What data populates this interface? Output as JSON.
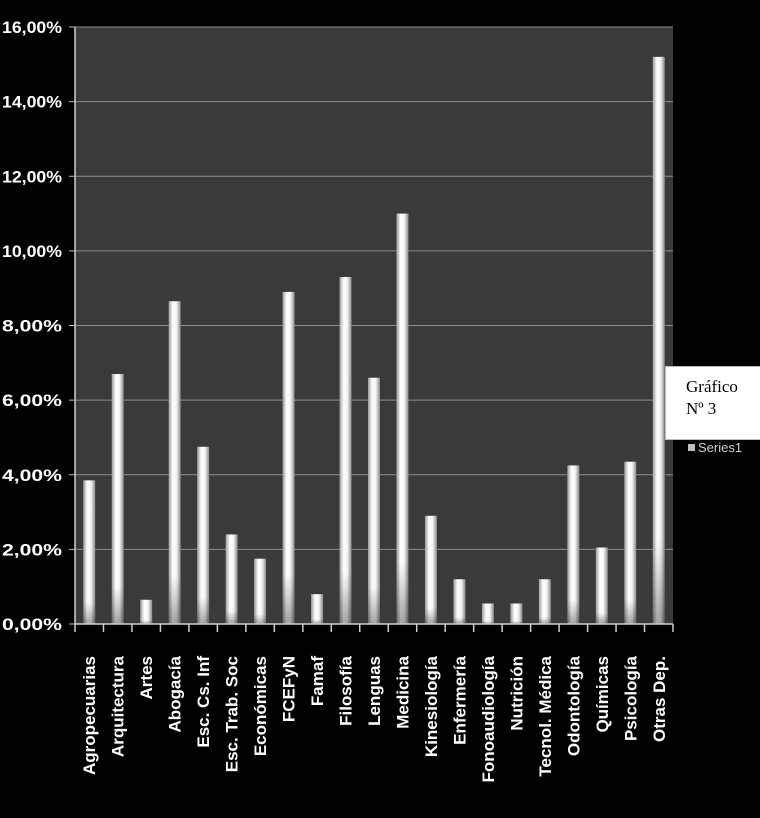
{
  "chart_data": {
    "type": "bar",
    "categories": [
      "Agropecuarias",
      "Arquitectura",
      "Artes",
      "Abogacía",
      "Esc. Cs. Inf",
      "Esc. Trab. Soc",
      "Económicas",
      "FCEFyN",
      "Famaf",
      "Filosofía",
      "Lenguas",
      "Medicina",
      "Kinesiología",
      "Enfermería",
      "Fonoaudiología",
      "Nutrición",
      "Tecnol. Médica",
      "Odontología",
      "Químicas",
      "Psicología",
      "Otras Dep."
    ],
    "series": [
      {
        "name": "Series1",
        "values": [
          3.85,
          6.7,
          0.65,
          8.65,
          4.75,
          2.4,
          1.75,
          8.9,
          0.8,
          9.3,
          6.6,
          11.0,
          2.9,
          1.2,
          0.55,
          0.55,
          1.2,
          4.25,
          2.05,
          4.35,
          15.2
        ]
      }
    ],
    "yticks": [
      "0,00%",
      "2,00%",
      "4,00%",
      "6,00%",
      "8,00%",
      "10,00%",
      "12,00%",
      "14,00%",
      "16,00%"
    ],
    "ylim": [
      0,
      16
    ],
    "grid": true,
    "legend": "right",
    "colors": {
      "outer_background": "#000000",
      "plot_background": "#3a3a3a",
      "bar": "#e6e6e6",
      "gridline": "#8c8c8c"
    }
  },
  "caption": {
    "line1": "Gráfico",
    "line2": "Nº 3"
  },
  "legend_fragment": "Series1"
}
